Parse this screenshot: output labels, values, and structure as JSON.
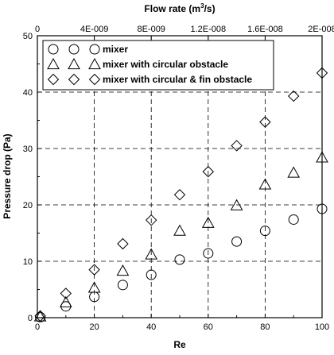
{
  "chart_data": {
    "type": "scatter",
    "title": "",
    "xlabel": "Re",
    "ylabel": "Pressure drop (Pa)",
    "x2label_main": "Flow rate (m",
    "x2label_sup": "3",
    "x2label_end": "/s)",
    "xlim": [
      0,
      100
    ],
    "ylim": [
      0,
      50
    ],
    "x2lim": [
      0,
      2e-08
    ],
    "xticks": [
      "0",
      "20",
      "40",
      "60",
      "80",
      "100"
    ],
    "yticks": [
      "0",
      "10",
      "20",
      "30",
      "40",
      "50"
    ],
    "x2ticks": [
      "0",
      "4E-009",
      "8E-009",
      "1.2E-008",
      "1.6E-008",
      "2E-008"
    ],
    "grid": true,
    "legend_position": "top-left",
    "series": [
      {
        "name": "mixer",
        "marker": "circle",
        "x": [
          1,
          10,
          20,
          30,
          40,
          50,
          60,
          70,
          80,
          90,
          100
        ],
        "y": [
          0.1,
          2.0,
          3.7,
          5.8,
          7.6,
          10.3,
          11.4,
          13.5,
          15.4,
          17.4,
          19.3
        ]
      },
      {
        "name": "mixer with circular obstacle",
        "marker": "triangle",
        "x": [
          1,
          10,
          20,
          30,
          40,
          50,
          60,
          70,
          80,
          90,
          100
        ],
        "y": [
          0.2,
          2.7,
          5.3,
          8.3,
          11.2,
          15.4,
          16.8,
          19.9,
          23.6,
          25.7,
          28.4
        ]
      },
      {
        "name": "mixer with circular & fin obstacle",
        "marker": "diamond",
        "x": [
          1,
          10,
          20,
          30,
          40,
          50,
          60,
          70,
          80,
          90,
          100
        ],
        "y": [
          0.3,
          4.3,
          8.5,
          13.1,
          17.3,
          21.8,
          25.9,
          30.5,
          34.7,
          39.3,
          43.4
        ]
      }
    ]
  }
}
